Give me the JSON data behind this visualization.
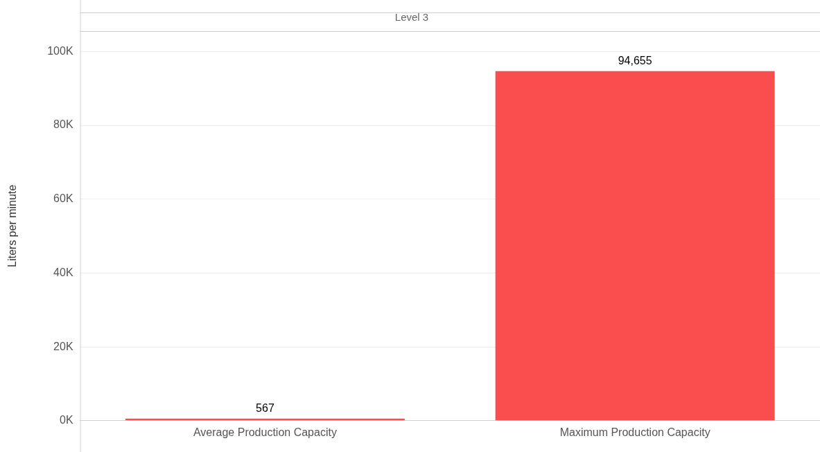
{
  "chart_data": {
    "type": "bar",
    "title": "Level 3",
    "ylabel": "Liters per minute",
    "categories": [
      "Average Production Capacity",
      "Maximum Production Capacity"
    ],
    "values": [
      567,
      94655
    ],
    "color": "#fa4d4d",
    "value_labels": [
      "567",
      "94,655"
    ],
    "ylim": [
      0,
      105500
    ],
    "yticks": [
      {
        "value": 0,
        "label": "0K"
      },
      {
        "value": 20000,
        "label": "20K"
      },
      {
        "value": 40000,
        "label": "40K"
      },
      {
        "value": 60000,
        "label": "60K"
      },
      {
        "value": 80000,
        "label": "80K"
      },
      {
        "value": 100000,
        "label": "100K"
      }
    ],
    "grid": "y"
  }
}
